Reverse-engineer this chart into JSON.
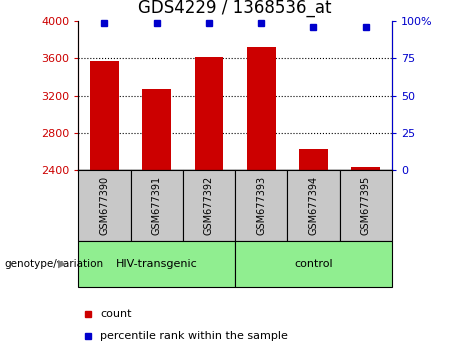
{
  "title": "GDS4229 / 1368536_at",
  "samples": [
    "GSM677390",
    "GSM677391",
    "GSM677392",
    "GSM677393",
    "GSM677394",
    "GSM677395"
  ],
  "counts": [
    3570,
    3270,
    3610,
    3720,
    2620,
    2430
  ],
  "percentile_ranks": [
    99,
    99,
    99,
    99,
    96,
    96
  ],
  "ylim_left": [
    2400,
    4000
  ],
  "ylim_right": [
    0,
    100
  ],
  "yticks_left": [
    2400,
    2800,
    3200,
    3600,
    4000
  ],
  "ytick_labels_left": [
    "2400",
    "2800",
    "3200",
    "3600",
    "4000"
  ],
  "yticks_right": [
    0,
    25,
    50,
    75,
    100
  ],
  "ytick_labels_right": [
    "0",
    "25",
    "50",
    "75",
    "100%"
  ],
  "bar_color": "#cc0000",
  "dot_color": "#0000cc",
  "bar_width": 0.55,
  "groups": [
    {
      "label": "HIV-transgenic",
      "start": 0,
      "end": 3,
      "color": "#90ee90"
    },
    {
      "label": "control",
      "start": 3,
      "end": 6,
      "color": "#90ee90"
    }
  ],
  "group_box_color": "#c8c8c8",
  "xlabel_group": "genotype/variation",
  "legend_count_label": "count",
  "legend_percentile_label": "percentile rank within the sample",
  "title_fontsize": 12,
  "tick_fontsize": 8,
  "sample_fontsize": 7,
  "group_fontsize": 8,
  "bar_baseline": 2400,
  "grid_yticks": [
    2800,
    3200,
    3600
  ]
}
